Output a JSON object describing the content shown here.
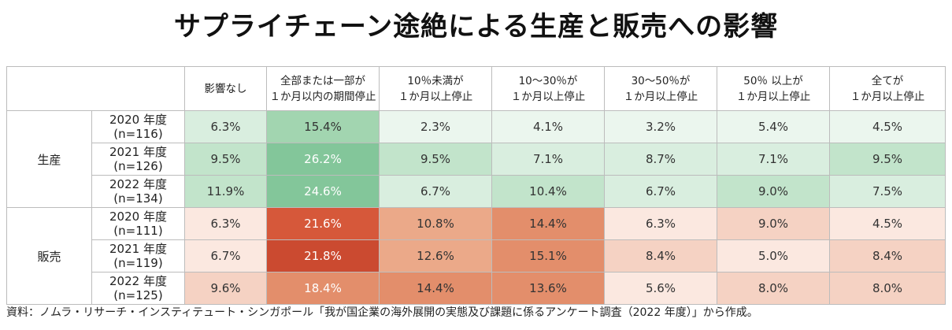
{
  "title": "サプライチェーン途絶による生産と販売への影響",
  "columns": [
    [
      "影響なし",
      ""
    ],
    [
      "全部または一部が",
      "１か月以内の期間停止"
    ],
    [
      "10％未満が",
      "１か月以上停止"
    ],
    [
      "10～30％が",
      "１か月以上停止"
    ],
    [
      "30～50％が",
      "１か月以上停止"
    ],
    [
      "50％ 以上が",
      "１か月以上停止"
    ],
    [
      "全てが",
      "１か月以上停止"
    ]
  ],
  "groups": [
    {
      "label": "生産",
      "rows": [
        {
          "year": "2020 年度",
          "n": "(n=116)",
          "cells": [
            "6.3%",
            "15.4%",
            "2.3%",
            "4.1%",
            "3.2%",
            "5.4%",
            "4.5%"
          ]
        },
        {
          "year": "2021 年度",
          "n": "(n=126)",
          "cells": [
            "9.5%",
            "26.2%",
            "9.5%",
            "7.1%",
            "8.7%",
            "7.1%",
            "9.5%"
          ]
        },
        {
          "year": "2022 年度",
          "n": "(n=134)",
          "cells": [
            "11.9%",
            "24.6%",
            "6.7%",
            "10.4%",
            "6.7%",
            "9.0%",
            "7.5%"
          ]
        }
      ]
    },
    {
      "label": "販売",
      "rows": [
        {
          "year": "2020 年度",
          "n": "(n=111)",
          "cells": [
            "6.3%",
            "21.6%",
            "10.8%",
            "14.4%",
            "6.3%",
            "9.0%",
            "4.5%"
          ]
        },
        {
          "year": "2021 年度",
          "n": "(n=119)",
          "cells": [
            "6.7%",
            "21.8%",
            "12.6%",
            "15.1%",
            "8.4%",
            "5.0%",
            "8.4%"
          ]
        },
        {
          "year": "2022 年度",
          "n": "(n=125)",
          "cells": [
            "9.6%",
            "18.4%",
            "14.4%",
            "13.6%",
            "5.6%",
            "8.0%",
            "8.0%"
          ]
        }
      ]
    }
  ],
  "note": "資料：ノムラ・リサーチ・インスティテュート・シンガポール「我が国企業の海外展開の実態及び課題に係るアンケート調査（2022 年度）」から作成。",
  "colors": {
    "production": [
      "#ebf6ee",
      "#d9eedf",
      "#c2e4cb",
      "#a2d5b0",
      "#83c69a"
    ],
    "sales": [
      "#fbe8e0",
      "#f5d2c3",
      "#eba989",
      "#e38e6b",
      "#d6583a",
      "#cb4a30"
    ]
  },
  "chart_data": {
    "type": "heatmap",
    "title": "サプライチェーン途絶による生産と販売への影響",
    "x": [
      "影響なし",
      "全部または一部が１か月以内の期間停止",
      "10％未満が１か月以上停止",
      "10～30％が１か月以上停止",
      "30～50％が１か月以上停止",
      "50％ 以上が１か月以上停止",
      "全てが１か月以上停止"
    ],
    "y": [
      "生産 2020 年度 (n=116)",
      "生産 2021 年度 (n=126)",
      "生産 2022 年度 (n=134)",
      "販売 2020 年度 (n=111)",
      "販売 2021 年度 (n=119)",
      "販売 2022 年度 (n=125)"
    ],
    "values": [
      [
        6.3,
        15.4,
        2.3,
        4.1,
        3.2,
        5.4,
        4.5
      ],
      [
        9.5,
        26.2,
        9.5,
        7.1,
        8.7,
        7.1,
        9.5
      ],
      [
        11.9,
        24.6,
        6.7,
        10.4,
        6.7,
        9.0,
        7.5
      ],
      [
        6.3,
        21.6,
        10.8,
        14.4,
        6.3,
        9.0,
        4.5
      ],
      [
        6.7,
        21.8,
        12.6,
        15.1,
        8.4,
        5.0,
        8.4
      ],
      [
        9.6,
        18.4,
        14.4,
        13.6,
        5.6,
        8.0,
        8.0
      ]
    ],
    "unit": "%"
  }
}
